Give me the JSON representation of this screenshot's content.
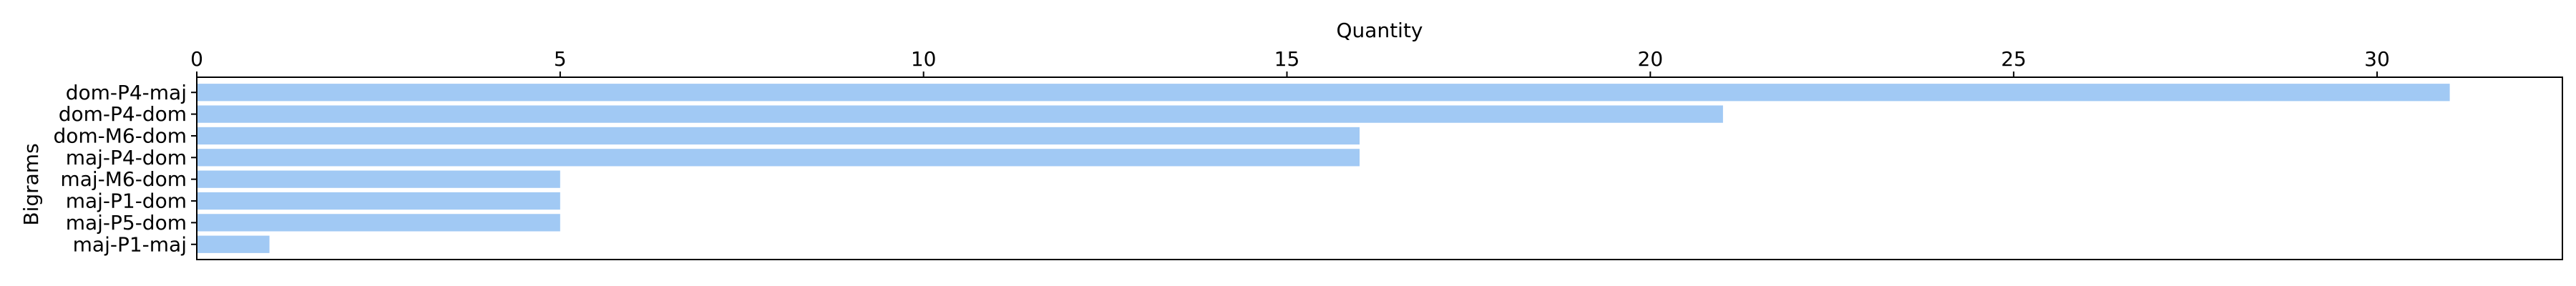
{
  "chart_data": {
    "type": "bar",
    "orientation": "horizontal",
    "title": "",
    "xlabel": "Quantity",
    "ylabel": "Bigrams",
    "x_axis_position": "top",
    "categories": [
      "dom-P4-maj",
      "dom-P4-dom",
      "dom-M6-dom",
      "maj-P4-dom",
      "maj-M6-dom",
      "maj-P1-dom",
      "maj-P5-dom",
      "maj-P1-maj"
    ],
    "values": [
      31,
      21,
      16,
      16,
      5,
      5,
      5,
      1
    ],
    "xlim": [
      0,
      32.55
    ],
    "xticks": [
      0,
      5,
      10,
      15,
      20,
      25,
      30
    ],
    "xtick_labels": [
      "0",
      "5",
      "10",
      "15",
      "20",
      "25",
      "30"
    ],
    "bar_color": "#a1c9f4",
    "grid": false,
    "legend": "none"
  }
}
